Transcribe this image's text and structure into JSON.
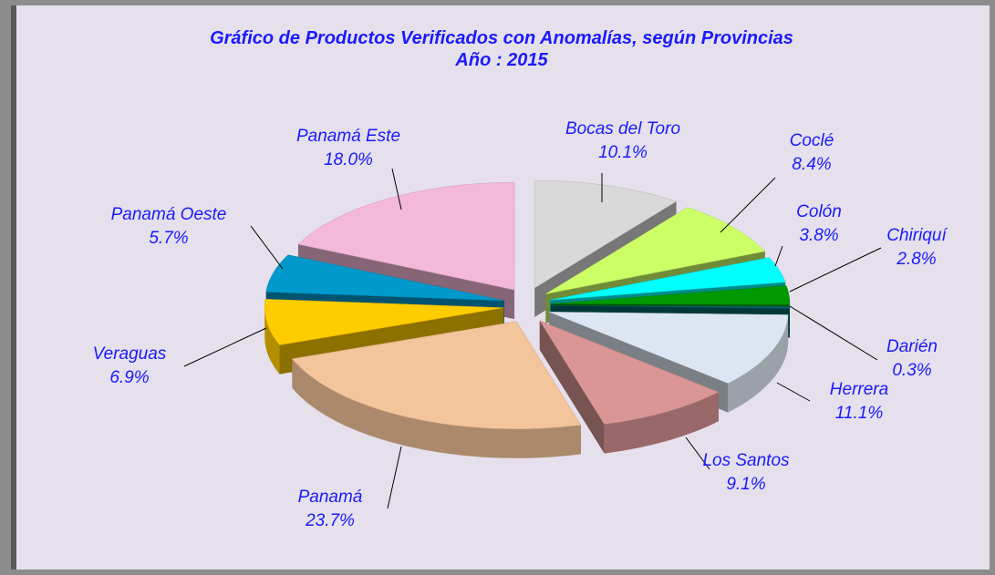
{
  "chart_data": {
    "type": "pie",
    "title": "Gráfico de Productos Verificados con Anomalías, según Provincias",
    "subtitle": "Año : 2015",
    "categories": [
      "Bocas del Toro",
      "Coclé",
      "Colón",
      "Chiriquí",
      "Darién",
      "Herrera",
      "Los Santos",
      "Panamá",
      "Veraguas",
      "Panamá Oeste",
      "Panamá Este"
    ],
    "values": [
      10.1,
      8.4,
      3.8,
      2.8,
      0.3,
      11.1,
      9.1,
      23.7,
      6.9,
      5.7,
      18.0
    ],
    "value_labels": [
      "10.1%",
      "8.4%",
      "3.8%",
      "2.8%",
      "0.3%",
      "11.1%",
      "9.1%",
      "23.7%",
      "6.9%",
      "5.7%",
      "18.0%"
    ],
    "colors": [
      "#d9d9d9",
      "#ccff66",
      "#00ffff",
      "#009900",
      "#006666",
      "#dce6f2",
      "#d99694",
      "#f4c49a",
      "#ffcc00",
      "#0099cc",
      "#f4b8d8"
    ]
  }
}
